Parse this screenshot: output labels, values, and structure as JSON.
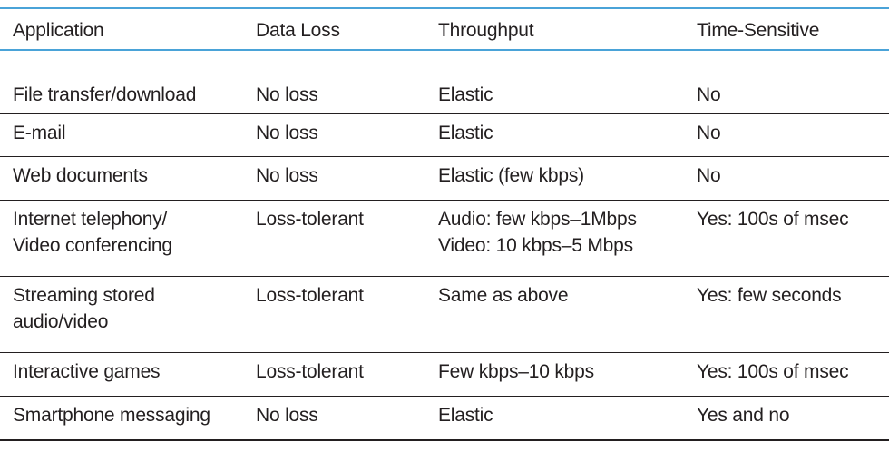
{
  "table": {
    "headers": {
      "application": "Application",
      "data_loss": "Data Loss",
      "throughput": "Throughput",
      "time_sensitive": "Time-Sensitive"
    },
    "rows": [
      {
        "application": [
          "File transfer/download"
        ],
        "data_loss": "No loss",
        "throughput": [
          "Elastic"
        ],
        "time_sensitive": "No"
      },
      {
        "application": [
          "E-mail"
        ],
        "data_loss": "No loss",
        "throughput": [
          "Elastic"
        ],
        "time_sensitive": "No"
      },
      {
        "application": [
          "Web documents"
        ],
        "data_loss": "No loss",
        "throughput": [
          "Elastic (few kbps)"
        ],
        "time_sensitive": "No"
      },
      {
        "application": [
          "Internet telephony/",
          "Video conferencing"
        ],
        "data_loss": "Loss-tolerant",
        "throughput": [
          "Audio: few kbps–1Mbps",
          "Video: 10 kbps–5 Mbps"
        ],
        "time_sensitive": "Yes: 100s of msec"
      },
      {
        "application": [
          "Streaming stored",
          "audio/video"
        ],
        "data_loss": "Loss-tolerant",
        "throughput": [
          "Same as above"
        ],
        "time_sensitive": "Yes: few seconds"
      },
      {
        "application": [
          "Interactive games"
        ],
        "data_loss": "Loss-tolerant",
        "throughput": [
          "Few kbps–10 kbps"
        ],
        "time_sensitive": "Yes: 100s of msec"
      },
      {
        "application": [
          "Smartphone messaging"
        ],
        "data_loss": "No loss",
        "throughput": [
          "Elastic"
        ],
        "time_sensitive": "Yes and no"
      }
    ]
  }
}
